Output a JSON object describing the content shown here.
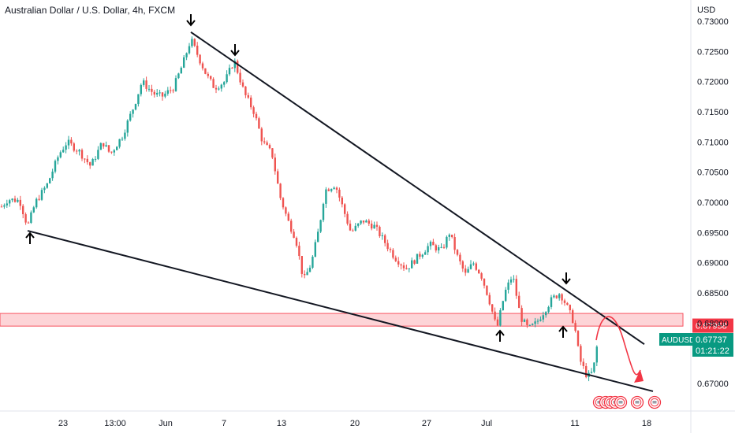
{
  "header": {
    "title": "Australian Dollar / U.S. Dollar, 4h, FXCM",
    "currency": "USD"
  },
  "chart_data": {
    "type": "candlestick",
    "symbol": "AUDUSD",
    "price_axis": {
      "ticks": [
        "0.73000",
        "0.72500",
        "0.72000",
        "0.71500",
        "0.71000",
        "0.70500",
        "0.70000",
        "0.69500",
        "0.69000",
        "0.68500",
        "0.68000",
        "0.67500",
        "0.67000"
      ],
      "range": [
        0.6685,
        0.7315
      ]
    },
    "time_axis": {
      "ticks": [
        "23",
        "13:00",
        "Jun",
        "7",
        "13",
        "20",
        "27",
        "Jul",
        "11",
        "18"
      ]
    },
    "last_price": {
      "symbol": "AUDUSD",
      "value": "0.67737",
      "countdown": "01:21:22"
    },
    "zone": {
      "price_label": "0.67958",
      "top": 0.6816,
      "bottom": 0.6795
    },
    "trendlines": [
      {
        "name": "upper",
        "from": [
          "Jun 2",
          0.7282
        ],
        "to": [
          "Jul 18",
          0.6765
        ]
      },
      {
        "name": "lower",
        "from": [
          "May 18",
          0.6953
        ],
        "to": [
          "Jul 19",
          0.6687
        ]
      }
    ],
    "colors": {
      "up": "#26a69a",
      "down": "#ef5350",
      "zone": "#f7525f",
      "line": "#131722",
      "label_bg": "#f23645",
      "price_bg": "#089981"
    },
    "markers": [
      {
        "type": "arrow-up",
        "at": "May 18 low"
      },
      {
        "type": "arrow-down",
        "at": "Jun 2 high"
      },
      {
        "type": "arrow-down",
        "at": "Jun 8 high"
      },
      {
        "type": "arrow-up",
        "at": "Jul 1 low"
      },
      {
        "type": "arrow-up",
        "at": "Jul 10 low"
      },
      {
        "type": "arrow-down",
        "at": "Jul 11 high"
      }
    ],
    "projection": "curved arrow from ~0.6775 up to ~0.6805 then down toward ~0.6705"
  },
  "toolbar": {
    "event_icons": [
      "flag-icon",
      "flag-icon",
      "flag-icon",
      "flag-icon",
      "flag-icon",
      "flag-icon",
      "flag-icon"
    ]
  }
}
